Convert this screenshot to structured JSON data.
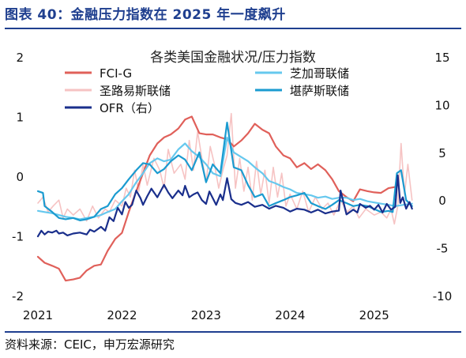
{
  "header": {
    "figure_title": "图表 40：金融压力指数在 2025 年一度飙升"
  },
  "footer": {
    "source": "资料来源：CEIC，申万宏源研究"
  },
  "colors": {
    "title_blue": "#1f3f8f",
    "fci_g": "#e0605a",
    "st_louis": "#f6c3c3",
    "chicago": "#66c8ee",
    "kansas_city": "#1b9bd0",
    "ofr": "#1a2f8c"
  },
  "chart_data": {
    "type": "line",
    "title": "各类美国金融状况/压力指数",
    "x_ticks": [
      "2021",
      "2022",
      "2023",
      "2024",
      "2025"
    ],
    "x_range": [
      2021.0,
      2025.5
    ],
    "y_left": {
      "ticks": [
        "2",
        "1",
        "0",
        "-1",
        "-2"
      ],
      "range": [
        -2,
        2
      ]
    },
    "y_right": {
      "ticks": [
        "15",
        "10",
        "5",
        "0",
        "-5",
        "-10"
      ],
      "range": [
        -10,
        15
      ]
    },
    "legend": [
      {
        "key": "fci",
        "label": "FCI-G"
      },
      {
        "key": "chicago",
        "label": "芝加哥联储"
      },
      {
        "key": "stl",
        "label": "圣路易斯联储"
      },
      {
        "key": "kc",
        "label": "堪萨斯联储"
      },
      {
        "key": "ofr",
        "label": "OFR（右）"
      }
    ],
    "series": [
      {
        "key": "stl",
        "name": "圣路易斯联储",
        "axis": "left",
        "x": [
          2021.0,
          2021.06,
          2021.12,
          2021.18,
          2021.25,
          2021.3,
          2021.35,
          2021.42,
          2021.5,
          2021.58,
          2021.65,
          2021.72,
          2021.8,
          2021.85,
          2021.92,
          2022.0,
          2022.05,
          2022.1,
          2022.15,
          2022.2,
          2022.25,
          2022.3,
          2022.38,
          2022.45,
          2022.5,
          2022.55,
          2022.62,
          2022.7,
          2022.75,
          2022.8,
          2022.85,
          2022.9,
          2022.95,
          2023.0,
          2023.05,
          2023.1,
          2023.15,
          2023.2,
          2023.25,
          2023.3,
          2023.35,
          2023.4,
          2023.45,
          2023.5,
          2023.55,
          2023.6,
          2023.65,
          2023.7,
          2023.75,
          2023.8,
          2023.85,
          2023.9,
          2023.95,
          2024.0,
          2024.08,
          2024.15,
          2024.22,
          2024.3,
          2024.38,
          2024.45,
          2024.52,
          2024.6,
          2024.68,
          2024.75,
          2024.82,
          2024.9,
          2025.0,
          2025.08,
          2025.15,
          2025.2,
          2025.24,
          2025.28,
          2025.32,
          2025.36,
          2025.4,
          2025.45
        ],
        "values": [
          -0.45,
          -0.35,
          -0.6,
          -0.5,
          -0.4,
          -0.7,
          -0.55,
          -0.65,
          -0.55,
          -0.75,
          -0.5,
          -0.7,
          -0.55,
          -0.6,
          -0.4,
          -0.5,
          -0.2,
          -0.35,
          0.1,
          -0.25,
          0.2,
          -0.15,
          0.3,
          0.1,
          -0.2,
          0.45,
          0.05,
          0.2,
          -0.05,
          0.6,
          0.1,
          0.75,
          0.3,
          -0.1,
          0.5,
          0.2,
          -0.2,
          0.1,
          0.35,
          1.05,
          -0.2,
          0.3,
          -0.25,
          0.15,
          -0.4,
          0.25,
          -0.3,
          0.1,
          -0.45,
          0.15,
          -0.35,
          0.05,
          -0.5,
          -0.3,
          -0.55,
          -0.25,
          -0.6,
          -0.35,
          -0.55,
          -0.45,
          -0.65,
          -0.4,
          -0.6,
          -0.5,
          -0.7,
          -0.55,
          -0.65,
          -0.6,
          -0.7,
          -0.55,
          -0.8,
          -0.5,
          0.55,
          -0.3,
          0.2,
          -0.4
        ]
      },
      {
        "key": "fci",
        "name": "FCI-G",
        "axis": "left",
        "x": [
          2021.0,
          2021.08,
          2021.17,
          2021.25,
          2021.33,
          2021.42,
          2021.5,
          2021.58,
          2021.67,
          2021.75,
          2021.83,
          2021.92,
          2022.0,
          2022.08,
          2022.17,
          2022.25,
          2022.33,
          2022.42,
          2022.5,
          2022.58,
          2022.67,
          2022.75,
          2022.83,
          2022.92,
          2023.0,
          2023.08,
          2023.17,
          2023.25,
          2023.33,
          2023.42,
          2023.5,
          2023.58,
          2023.67,
          2023.75,
          2023.83,
          2023.92,
          2024.0,
          2024.08,
          2024.17,
          2024.25,
          2024.33,
          2024.42,
          2024.5,
          2024.58,
          2024.67,
          2024.75,
          2024.83,
          2024.92,
          2025.0,
          2025.08,
          2025.17,
          2025.25
        ],
        "values": [
          -1.35,
          -1.45,
          -1.5,
          -1.55,
          -1.75,
          -1.73,
          -1.7,
          -1.58,
          -1.5,
          -1.48,
          -1.25,
          -1.05,
          -0.95,
          -0.6,
          -0.25,
          0.05,
          0.35,
          0.55,
          0.65,
          0.7,
          0.8,
          0.95,
          1.0,
          0.72,
          0.7,
          0.7,
          0.65,
          0.62,
          0.5,
          0.6,
          0.72,
          0.88,
          0.78,
          0.72,
          0.5,
          0.35,
          0.3,
          0.15,
          0.22,
          0.12,
          0.2,
          0.1,
          -0.05,
          -0.25,
          -0.35,
          -0.42,
          -0.22,
          -0.25,
          -0.27,
          -0.28,
          -0.2,
          -0.18
        ]
      },
      {
        "key": "chicago",
        "name": "芝加哥联储",
        "axis": "left",
        "x": [
          2021.0,
          2021.08,
          2021.17,
          2021.25,
          2021.33,
          2021.42,
          2021.5,
          2021.58,
          2021.67,
          2021.75,
          2021.83,
          2021.92,
          2022.0,
          2022.08,
          2022.17,
          2022.25,
          2022.33,
          2022.42,
          2022.5,
          2022.58,
          2022.67,
          2022.75,
          2022.83,
          2022.92,
          2023.0,
          2023.08,
          2023.17,
          2023.25,
          2023.33,
          2023.42,
          2023.5,
          2023.58,
          2023.67,
          2023.75,
          2023.83,
          2023.92,
          2024.0,
          2024.08,
          2024.17,
          2024.25,
          2024.33,
          2024.42,
          2024.5,
          2024.58,
          2024.67,
          2024.75,
          2024.83,
          2024.92,
          2025.0,
          2025.08,
          2025.17,
          2025.25,
          2025.35,
          2025.45
        ],
        "values": [
          -0.58,
          -0.6,
          -0.62,
          -0.65,
          -0.68,
          -0.7,
          -0.72,
          -0.7,
          -0.68,
          -0.65,
          -0.6,
          -0.55,
          -0.42,
          -0.3,
          -0.1,
          0.05,
          0.22,
          0.3,
          0.25,
          0.28,
          0.45,
          0.55,
          0.42,
          0.32,
          0.2,
          0.05,
          0.0,
          0.65,
          0.4,
          0.32,
          0.25,
          0.15,
          0.05,
          -0.08,
          -0.12,
          -0.18,
          -0.22,
          -0.28,
          -0.3,
          -0.32,
          -0.36,
          -0.34,
          -0.38,
          -0.36,
          -0.36,
          -0.4,
          -0.38,
          -0.42,
          -0.44,
          -0.46,
          -0.48,
          -0.5,
          -0.48,
          -0.46
        ]
      },
      {
        "key": "kc",
        "name": "堪萨斯联储",
        "axis": "left",
        "x": [
          2021.0,
          2021.06,
          2021.08,
          2021.17,
          2021.25,
          2021.33,
          2021.42,
          2021.5,
          2021.58,
          2021.67,
          2021.75,
          2021.83,
          2021.92,
          2022.0,
          2022.08,
          2022.17,
          2022.25,
          2022.33,
          2022.42,
          2022.5,
          2022.58,
          2022.67,
          2022.75,
          2022.83,
          2022.92,
          2023.0,
          2023.08,
          2023.17,
          2023.25,
          2023.33,
          2023.42,
          2023.5,
          2023.58,
          2023.67,
          2023.75,
          2023.83,
          2023.92,
          2024.0,
          2024.08,
          2024.17,
          2024.25,
          2024.33,
          2024.42,
          2024.5,
          2024.58,
          2024.67,
          2024.75,
          2024.83,
          2024.92,
          2025.0,
          2025.08,
          2025.17,
          2025.22,
          2025.27,
          2025.32,
          2025.38,
          2025.45
        ],
        "values": [
          -0.25,
          -0.28,
          -0.5,
          -0.6,
          -0.7,
          -0.72,
          -0.7,
          -0.74,
          -0.72,
          -0.68,
          -0.55,
          -0.5,
          -0.3,
          -0.2,
          -0.05,
          0.1,
          0.22,
          0.2,
          0.05,
          0.12,
          0.25,
          0.35,
          0.28,
          0.1,
          0.4,
          -0.1,
          0.2,
          0.05,
          0.9,
          0.15,
          0.1,
          -0.15,
          -0.35,
          -0.3,
          -0.5,
          -0.45,
          -0.4,
          -0.35,
          -0.32,
          -0.28,
          -0.45,
          -0.5,
          -0.55,
          -0.48,
          -0.4,
          -0.45,
          -0.5,
          -0.48,
          -0.5,
          -0.55,
          -0.6,
          -0.58,
          -0.6,
          0.05,
          0.1,
          -0.4,
          -0.5
        ]
      },
      {
        "key": "ofr",
        "name": "OFR（右）",
        "axis": "right",
        "x": [
          2021.0,
          2021.04,
          2021.08,
          2021.12,
          2021.17,
          2021.22,
          2021.25,
          2021.3,
          2021.35,
          2021.42,
          2021.5,
          2021.58,
          2021.62,
          2021.67,
          2021.75,
          2021.8,
          2021.85,
          2021.9,
          2021.95,
          2022.0,
          2022.04,
          2022.08,
          2022.12,
          2022.17,
          2022.22,
          2022.25,
          2022.3,
          2022.35,
          2022.42,
          2022.5,
          2022.55,
          2022.6,
          2022.67,
          2022.72,
          2022.75,
          2022.8,
          2022.85,
          2022.9,
          2022.95,
          2023.0,
          2023.04,
          2023.08,
          2023.12,
          2023.17,
          2023.2,
          2023.25,
          2023.3,
          2023.35,
          2023.42,
          2023.5,
          2023.58,
          2023.67,
          2023.75,
          2023.83,
          2023.92,
          2024.0,
          2024.08,
          2024.17,
          2024.25,
          2024.33,
          2024.42,
          2024.5,
          2024.58,
          2024.6,
          2024.67,
          2024.75,
          2024.8,
          2024.83,
          2024.9,
          2024.95,
          2025.0,
          2025.05,
          2025.1,
          2025.15,
          2025.2,
          2025.25,
          2025.28,
          2025.31,
          2025.34,
          2025.38,
          2025.42,
          2025.45
        ],
        "values": [
          -3.8,
          -3.2,
          -3.6,
          -3.3,
          -3.4,
          -3.2,
          -3.5,
          -3.4,
          -3.7,
          -3.5,
          -3.4,
          -3.6,
          -3.1,
          -3.3,
          -2.8,
          -3.2,
          -1.8,
          -2.2,
          -0.8,
          -1.5,
          -0.2,
          -0.8,
          -0.5,
          1.0,
          0.2,
          -0.5,
          0.4,
          1.2,
          0.3,
          1.6,
          0.8,
          0.2,
          1.0,
          0.5,
          1.5,
          0.3,
          0.6,
          0.8,
          0.0,
          -0.4,
          0.9,
          0.2,
          -0.5,
          0.6,
          0.0,
          2.3,
          0.1,
          -0.3,
          -0.5,
          -0.2,
          -0.7,
          -0.5,
          -0.9,
          -0.6,
          -0.8,
          -1.2,
          -0.9,
          -1.0,
          -1.3,
          -1.0,
          -1.4,
          -1.2,
          -1.1,
          1.0,
          -1.5,
          -1.0,
          -1.3,
          -0.4,
          -0.8,
          -0.6,
          -1.0,
          -0.5,
          -1.3,
          -0.4,
          -1.0,
          -0.7,
          2.6,
          -0.3,
          0.3,
          -0.9,
          -0.2,
          -0.9
        ]
      }
    ]
  }
}
